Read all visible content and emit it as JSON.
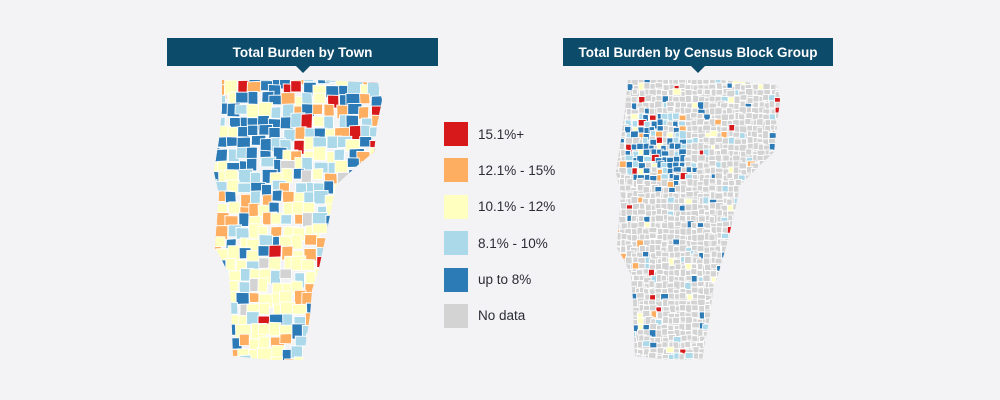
{
  "left_panel": {
    "title": "Total Burden by Town"
  },
  "right_panel": {
    "title": "Total Burden by Census Block Group"
  },
  "legend": {
    "items": [
      {
        "label": "15.1%+",
        "color": "#d7191c"
      },
      {
        "label": "12.1% - 15%",
        "color": "#fdae61"
      },
      {
        "label": "10.1% - 12%",
        "color": "#ffffbf"
      },
      {
        "label": "8.1% - 10%",
        "color": "#abd9e9"
      },
      {
        "label": "up to 8%",
        "color": "#2c7bb6"
      },
      {
        "label": "No data",
        "color": "#d3d3d3"
      }
    ]
  },
  "colors": {
    "background": "#f3f3f6",
    "banner": "#0d4b6b",
    "borders": "#ffffff"
  }
}
